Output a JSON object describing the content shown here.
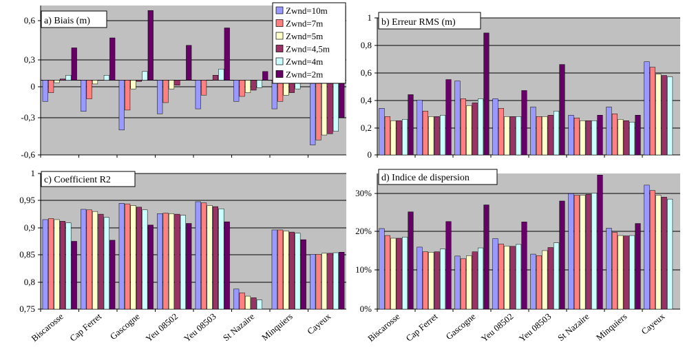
{
  "chart_data": [
    {
      "type": "bar",
      "title": "a) Biais (m)",
      "categories": [
        "Biscarosse",
        "Cap Ferret",
        "Gascogne",
        "Yeu 08502",
        "Yeu 08503",
        "St Nazaire",
        "Minquiers",
        "Cayeux"
      ],
      "yticks": [
        "0,6",
        "0,3",
        "0",
        "-0,3",
        "-0,6"
      ],
      "ylim": [
        -0.6,
        0.6
      ],
      "grid": true,
      "legend": "top-right",
      "series": [
        {
          "name": "Zwnd=10m",
          "values": [
            -0.17,
            -0.25,
            -0.4,
            -0.27,
            -0.23,
            -0.17,
            -0.23,
            -0.52
          ]
        },
        {
          "name": "Zwnd=7m",
          "values": [
            -0.1,
            -0.15,
            -0.24,
            -0.18,
            -0.12,
            -0.13,
            -0.17,
            -0.48
          ]
        },
        {
          "name": "Zwnd=5m",
          "values": [
            -0.02,
            -0.03,
            -0.07,
            -0.07,
            0.0,
            -0.1,
            -0.12,
            -0.44
          ]
        },
        {
          "name": "Zwnd=4,5m",
          "values": [
            0.01,
            0.0,
            -0.01,
            -0.04,
            0.04,
            -0.08,
            -0.1,
            -0.43
          ]
        },
        {
          "name": "Zwnd=4m",
          "values": [
            0.04,
            0.04,
            0.07,
            0.0,
            0.09,
            -0.06,
            -0.07,
            -0.41
          ]
        },
        {
          "name": "Zwnd=2m",
          "values": [
            0.26,
            0.34,
            0.56,
            0.28,
            0.42,
            0.07,
            0.1,
            -0.3
          ]
        }
      ]
    },
    {
      "type": "bar",
      "title": "b) Erreur RMS (m)",
      "categories": [
        "Biscarosse",
        "Cap Ferret",
        "Gascogne",
        "Yeu 08502",
        "Yeu 08503",
        "St Nazaire",
        "Minquiers",
        "Cayeux"
      ],
      "yticks": [
        "1",
        "0,8",
        "0,6",
        "0,4",
        "0,2",
        "0"
      ],
      "ylim": [
        0,
        1
      ],
      "grid": true,
      "series": [
        {
          "name": "Zwnd=10m",
          "values": [
            0.34,
            0.4,
            0.54,
            0.41,
            0.35,
            0.29,
            0.35,
            0.68
          ]
        },
        {
          "name": "Zwnd=7m",
          "values": [
            0.28,
            0.32,
            0.41,
            0.34,
            0.28,
            0.27,
            0.3,
            0.64
          ]
        },
        {
          "name": "Zwnd=5m",
          "values": [
            0.25,
            0.28,
            0.36,
            0.28,
            0.28,
            0.25,
            0.26,
            0.59
          ]
        },
        {
          "name": "Zwnd=4,5m",
          "values": [
            0.25,
            0.28,
            0.38,
            0.28,
            0.29,
            0.25,
            0.25,
            0.58
          ]
        },
        {
          "name": "Zwnd=4m",
          "values": [
            0.26,
            0.29,
            0.41,
            0.28,
            0.32,
            0.25,
            0.24,
            0.57
          ]
        },
        {
          "name": "Zwnd=2m",
          "values": [
            0.44,
            0.55,
            0.89,
            0.47,
            0.66,
            0.29,
            0.29,
            0.0
          ]
        }
      ]
    },
    {
      "type": "bar",
      "title": "c) Coefficient R2",
      "categories": [
        "Biscarosse",
        "Cap Ferret",
        "Gascogne",
        "Yeu 08502",
        "Yeu 08503",
        "St Nazaire",
        "Minquiers",
        "Cayeux"
      ],
      "yticks": [
        "1",
        "0,95",
        "0,9",
        "0,85",
        "0,8",
        "0,75"
      ],
      "ylim": [
        0.75,
        1
      ],
      "grid": true,
      "series": [
        {
          "name": "Zwnd=10m",
          "values": [
            0.915,
            0.934,
            0.945,
            0.926,
            0.948,
            0.787,
            0.896,
            0.851
          ]
        },
        {
          "name": "Zwnd=7m",
          "values": [
            0.917,
            0.933,
            0.944,
            0.927,
            0.946,
            0.78,
            0.896,
            0.851
          ]
        },
        {
          "name": "Zwnd=5m",
          "values": [
            0.915,
            0.93,
            0.941,
            0.926,
            0.941,
            0.774,
            0.894,
            0.853
          ]
        },
        {
          "name": "Zwnd=4,5m",
          "values": [
            0.912,
            0.925,
            0.938,
            0.925,
            0.939,
            0.771,
            0.892,
            0.853
          ]
        },
        {
          "name": "Zwnd=4m",
          "values": [
            0.909,
            0.919,
            0.933,
            0.923,
            0.935,
            0.767,
            0.89,
            0.854
          ]
        },
        {
          "name": "Zwnd=2m",
          "values": [
            0.875,
            0.877,
            0.905,
            0.908,
            0.911,
            0.75,
            0.878,
            0.855
          ]
        }
      ]
    },
    {
      "type": "bar",
      "title": "d) Indice de dispersion",
      "categories": [
        "Biscarosse",
        "Cap Ferret",
        "Gascogne",
        "Yeu 08502",
        "Yeu 08503",
        "St Nazaire",
        "Minquiers",
        "Cayeux"
      ],
      "yticks": [
        "30%",
        "20%",
        "10%",
        "0%"
      ],
      "ylim": [
        0,
        35
      ],
      "grid": true,
      "series": [
        {
          "name": "Zwnd=10m",
          "values": [
            20.8,
            16.0,
            13.7,
            18.2,
            14.2,
            29.8,
            20.9,
            32.0
          ]
        },
        {
          "name": "Zwnd=7m",
          "values": [
            19.0,
            14.8,
            13.0,
            16.8,
            13.8,
            29.4,
            19.8,
            30.6
          ]
        },
        {
          "name": "Zwnd=5m",
          "values": [
            18.3,
            14.7,
            13.8,
            16.3,
            15.1,
            29.4,
            19.0,
            29.4
          ]
        },
        {
          "name": "Zwnd=4,5m",
          "values": [
            18.3,
            14.8,
            14.8,
            16.2,
            15.9,
            29.6,
            18.9,
            28.9
          ]
        },
        {
          "name": "Zwnd=4m",
          "values": [
            18.6,
            15.5,
            15.8,
            16.7,
            17.1,
            29.9,
            19.0,
            28.4
          ]
        },
        {
          "name": "Zwnd=2m",
          "values": [
            25.1,
            22.6,
            26.9,
            22.5,
            27.9,
            34.6,
            22.1,
            0
          ]
        }
      ]
    }
  ],
  "legend": {
    "labels": [
      "Zwnd=10m",
      "Zwnd=7m",
      "Zwnd=5m",
      "Zwnd=4,5m",
      "Zwnd=4m",
      "Zwnd=2m"
    ]
  },
  "colors": {
    "plot_bg": "#c0c0c0",
    "series": [
      "#9999ff",
      "#ff8080",
      "#ffffcc",
      "#993366",
      "#ccffff",
      "#660066"
    ]
  }
}
